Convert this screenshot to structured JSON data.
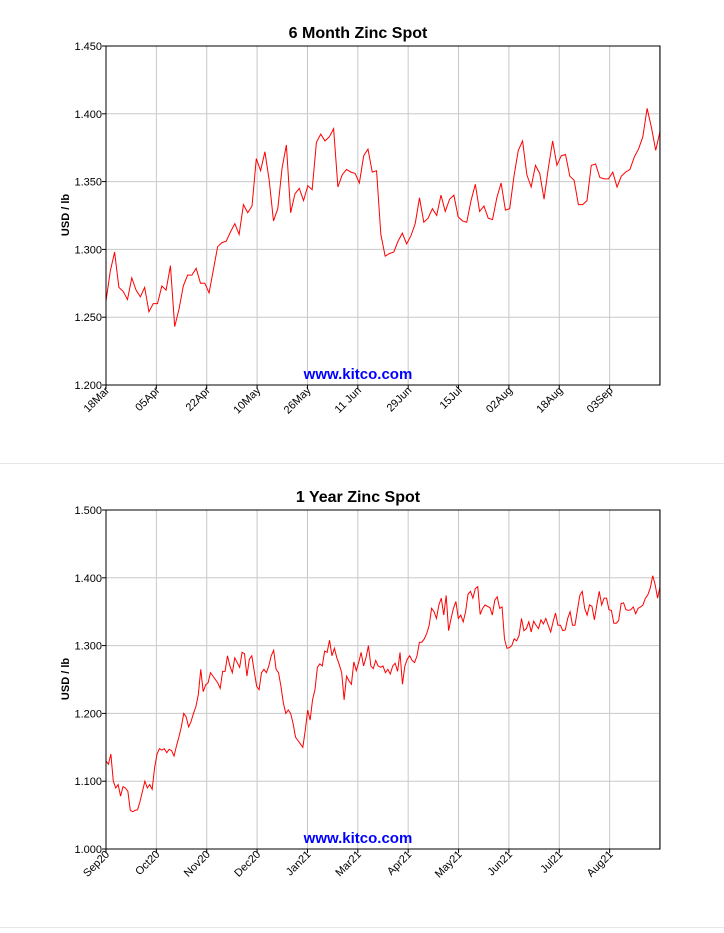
{
  "chart_data": [
    {
      "type": "line",
      "title": "6 Month Zinc Spot",
      "ylabel": "USD / lb",
      "watermark": "www.kitco.com",
      "ylim": [
        1.2,
        1.45
      ],
      "yticks": [
        "1.200",
        "1.250",
        "1.300",
        "1.350",
        "1.400",
        "1.450"
      ],
      "xticks": [
        "18Mar",
        "05Apr",
        "22Apr",
        "10May",
        "26May",
        "11 Jun",
        "29Jun",
        "15Jul",
        "02Aug",
        "18Aug",
        "03Sep"
      ],
      "grid": true,
      "line_color": "#ff0000",
      "series": [
        {
          "values": [
            1.262,
            1.284,
            1.298,
            1.272,
            1.269,
            1.263,
            1.279,
            1.27,
            1.265,
            1.272,
            1.254,
            1.26,
            1.26,
            1.273,
            1.27,
            1.288,
            1.243,
            1.256,
            1.273,
            1.281,
            1.281,
            1.286,
            1.275,
            1.275,
            1.268,
            1.285,
            1.302,
            1.305,
            1.306,
            1.313,
            1.319,
            1.311,
            1.333,
            1.327,
            1.332,
            1.367,
            1.358,
            1.372,
            1.351,
            1.321,
            1.33,
            1.36,
            1.377,
            1.327,
            1.341,
            1.345,
            1.336,
            1.347,
            1.344,
            1.379,
            1.385,
            1.38,
            1.383,
            1.389,
            1.346,
            1.355,
            1.359,
            1.357,
            1.356,
            1.349,
            1.369,
            1.374,
            1.357,
            1.358,
            1.311,
            1.295,
            1.297,
            1.298,
            1.306,
            1.312,
            1.304,
            1.31,
            1.319,
            1.338,
            1.32,
            1.323,
            1.33,
            1.325,
            1.34,
            1.328,
            1.337,
            1.34,
            1.324,
            1.321,
            1.32,
            1.336,
            1.348,
            1.328,
            1.332,
            1.323,
            1.322,
            1.338,
            1.349,
            1.329,
            1.33,
            1.354,
            1.373,
            1.38,
            1.355,
            1.346,
            1.362,
            1.356,
            1.337,
            1.36,
            1.38,
            1.362,
            1.369,
            1.37,
            1.354,
            1.351,
            1.333,
            1.333,
            1.336,
            1.362,
            1.363,
            1.353,
            1.352,
            1.352,
            1.357,
            1.346,
            1.354,
            1.357,
            1.359,
            1.368,
            1.374,
            1.383,
            1.404,
            1.39,
            1.373,
            1.387
          ]
        }
      ]
    },
    {
      "type": "line",
      "title": "1 Year Zinc Spot",
      "ylabel": "USD / lb",
      "watermark": "www.kitco.com",
      "ylim": [
        1.0,
        1.5
      ],
      "yticks": [
        "1.000",
        "1.100",
        "1.200",
        "1.300",
        "1.400",
        "1.500"
      ],
      "xticks": [
        "Sep20",
        "Oct20",
        "Nov20",
        "Dec20",
        "Jan21",
        "Mar21",
        "Apr21",
        "May21",
        "Jun21",
        "Jul21",
        "Aug21"
      ],
      "grid": true,
      "line_color": "#ff0000",
      "series": [
        {
          "values": [
            1.13,
            1.125,
            1.14,
            1.1,
            1.09,
            1.095,
            1.078,
            1.092,
            1.09,
            1.085,
            1.057,
            1.055,
            1.057,
            1.058,
            1.07,
            1.085,
            1.1,
            1.09,
            1.095,
            1.088,
            1.12,
            1.14,
            1.148,
            1.146,
            1.148,
            1.142,
            1.147,
            1.145,
            1.137,
            1.152,
            1.165,
            1.18,
            1.2,
            1.195,
            1.18,
            1.188,
            1.2,
            1.21,
            1.228,
            1.265,
            1.232,
            1.242,
            1.245,
            1.26,
            1.255,
            1.25,
            1.245,
            1.237,
            1.262,
            1.262,
            1.285,
            1.27,
            1.26,
            1.282,
            1.275,
            1.268,
            1.29,
            1.288,
            1.255,
            1.28,
            1.285,
            1.262,
            1.24,
            1.235,
            1.26,
            1.265,
            1.26,
            1.27,
            1.285,
            1.293,
            1.265,
            1.26,
            1.24,
            1.215,
            1.2,
            1.205,
            1.2,
            1.185,
            1.165,
            1.16,
            1.155,
            1.15,
            1.175,
            1.205,
            1.19,
            1.22,
            1.235,
            1.268,
            1.273,
            1.27,
            1.292,
            1.29,
            1.308,
            1.285,
            1.296,
            1.282,
            1.272,
            1.26,
            1.22,
            1.255,
            1.248,
            1.243,
            1.276,
            1.263,
            1.275,
            1.29,
            1.27,
            1.282,
            1.3,
            1.27,
            1.266,
            1.278,
            1.27,
            1.268,
            1.27,
            1.26,
            1.265,
            1.258,
            1.27,
            1.274,
            1.262,
            1.29,
            1.243,
            1.27,
            1.28,
            1.285,
            1.278,
            1.275,
            1.285,
            1.305,
            1.305,
            1.31,
            1.318,
            1.33,
            1.355,
            1.35,
            1.34,
            1.36,
            1.37,
            1.345,
            1.374,
            1.322,
            1.34,
            1.355,
            1.365,
            1.34,
            1.345,
            1.335,
            1.35,
            1.376,
            1.38,
            1.37,
            1.384,
            1.387,
            1.346,
            1.355,
            1.36,
            1.358,
            1.356,
            1.345,
            1.367,
            1.372,
            1.355,
            1.357,
            1.31,
            1.296,
            1.297,
            1.3,
            1.31,
            1.307,
            1.315,
            1.34,
            1.322,
            1.325,
            1.335,
            1.32,
            1.336,
            1.33,
            1.325,
            1.338,
            1.332,
            1.34,
            1.33,
            1.32,
            1.335,
            1.348,
            1.33,
            1.33,
            1.322,
            1.323,
            1.34,
            1.35,
            1.33,
            1.33,
            1.352,
            1.374,
            1.38,
            1.355,
            1.345,
            1.36,
            1.358,
            1.338,
            1.36,
            1.38,
            1.36,
            1.37,
            1.37,
            1.353,
            1.352,
            1.333,
            1.333,
            1.337,
            1.362,
            1.363,
            1.353,
            1.352,
            1.353,
            1.357,
            1.347,
            1.355,
            1.357,
            1.36,
            1.37,
            1.375,
            1.385,
            1.403,
            1.39,
            1.37,
            1.387
          ]
        }
      ]
    }
  ]
}
